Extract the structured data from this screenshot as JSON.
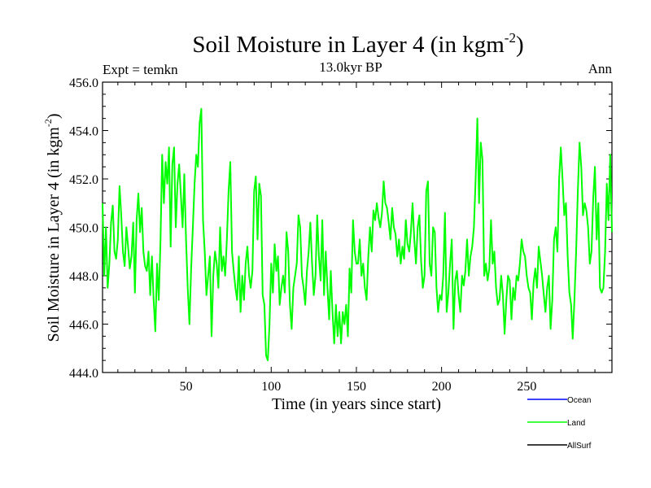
{
  "chart_data": {
    "type": "line",
    "title_main": "Soil Moisture in Layer 4 (in kgm",
    "title_sup": "-2",
    "title_close": ")",
    "subtitle": "13.0kyr BP",
    "left_label": "Expt = temkn",
    "right_label": "Ann",
    "xlabel": "Time (in years since start)",
    "ylabel_main": "Soil Moisture in Layer 4 (in kgm",
    "ylabel_sup": "-2",
    "ylabel_close": ")",
    "xlim": [
      1,
      300
    ],
    "ylim": [
      444.0,
      456.0
    ],
    "xticks": [
      50,
      100,
      150,
      200,
      250
    ],
    "yticks": [
      444.0,
      446.0,
      448.0,
      450.0,
      452.0,
      454.0,
      456.0
    ],
    "ytick_labels": [
      "444.0",
      "446.0",
      "448.0",
      "450.0",
      "452.0",
      "454.0",
      "456.0"
    ],
    "legend": [
      {
        "name": "Ocean",
        "color": "#0000ff"
      },
      {
        "name": "Land",
        "color": "#00ff00"
      },
      {
        "name": "AllSurf",
        "color": "#000000"
      }
    ],
    "series": [
      {
        "name": "Land",
        "color": "#00ff00",
        "points": [
          [
            1,
            451.0
          ],
          [
            2,
            448.0
          ],
          [
            3,
            450.0
          ],
          [
            4,
            447.5
          ],
          [
            5,
            448.5
          ],
          [
            6,
            450.2
          ],
          [
            7,
            450.9
          ],
          [
            8,
            449.0
          ],
          [
            9,
            448.7
          ],
          [
            10,
            449.5
          ],
          [
            11,
            451.7
          ],
          [
            12,
            450.5
          ],
          [
            13,
            449.0
          ],
          [
            14,
            448.4
          ],
          [
            15,
            450.0
          ],
          [
            16,
            449.2
          ],
          [
            17,
            448.3
          ],
          [
            18,
            448.8
          ],
          [
            19,
            450.2
          ],
          [
            20,
            447.3
          ],
          [
            21,
            450.3
          ],
          [
            22,
            451.4
          ],
          [
            23,
            449.8
          ],
          [
            24,
            450.8
          ],
          [
            25,
            449.0
          ],
          [
            26,
            448.4
          ],
          [
            27,
            448.2
          ],
          [
            28,
            449.0
          ],
          [
            29,
            447.2
          ],
          [
            30,
            448.8
          ],
          [
            31,
            447.0
          ],
          [
            32,
            445.7
          ],
          [
            33,
            448.5
          ],
          [
            34,
            447.0
          ],
          [
            35,
            449.4
          ],
          [
            36,
            453.0
          ],
          [
            37,
            451.0
          ],
          [
            38,
            452.7
          ],
          [
            39,
            451.8
          ],
          [
            40,
            453.3
          ],
          [
            41,
            449.2
          ],
          [
            42,
            452.6
          ],
          [
            43,
            453.3
          ],
          [
            44,
            450.0
          ],
          [
            45,
            451.8
          ],
          [
            46,
            452.6
          ],
          [
            47,
            451.3
          ],
          [
            48,
            450.0
          ],
          [
            49,
            452.2
          ],
          [
            50,
            449.5
          ],
          [
            51,
            447.5
          ],
          [
            52,
            446.0
          ],
          [
            53,
            448.3
          ],
          [
            54,
            450.0
          ],
          [
            55,
            451.8
          ],
          [
            56,
            453.0
          ],
          [
            57,
            452.5
          ],
          [
            58,
            454.3
          ],
          [
            59,
            454.9
          ],
          [
            60,
            450.3
          ],
          [
            61,
            449.0
          ],
          [
            62,
            447.2
          ],
          [
            63,
            448.0
          ],
          [
            64,
            448.8
          ],
          [
            65,
            445.5
          ],
          [
            66,
            448.0
          ],
          [
            67,
            449.0
          ],
          [
            68,
            448.5
          ],
          [
            69,
            447.5
          ],
          [
            70,
            450.0
          ],
          [
            71,
            448.2
          ],
          [
            72,
            448.8
          ],
          [
            73,
            448.0
          ],
          [
            74,
            449.5
          ],
          [
            75,
            451.5
          ],
          [
            76,
            452.7
          ],
          [
            77,
            449.0
          ],
          [
            78,
            448.2
          ],
          [
            79,
            447.5
          ],
          [
            80,
            447.0
          ],
          [
            81,
            448.8
          ],
          [
            82,
            446.5
          ],
          [
            83,
            448.0
          ],
          [
            84,
            447.0
          ],
          [
            85,
            448.5
          ],
          [
            86,
            449.2
          ],
          [
            87,
            448.0
          ],
          [
            88,
            447.5
          ],
          [
            89,
            448.2
          ],
          [
            90,
            451.5
          ],
          [
            91,
            452.1
          ],
          [
            92,
            449.5
          ],
          [
            93,
            451.8
          ],
          [
            94,
            451.3
          ],
          [
            95,
            447.2
          ],
          [
            96,
            446.8
          ],
          [
            97,
            444.7
          ],
          [
            98,
            444.5
          ],
          [
            99,
            446.0
          ],
          [
            100,
            448.5
          ],
          [
            101,
            447.3
          ],
          [
            102,
            449.3
          ],
          [
            103,
            448.2
          ],
          [
            104,
            448.8
          ],
          [
            105,
            446.8
          ],
          [
            106,
            447.5
          ],
          [
            107,
            448.0
          ],
          [
            108,
            447.3
          ],
          [
            109,
            449.8
          ],
          [
            110,
            449.0
          ],
          [
            111,
            446.8
          ],
          [
            112,
            445.8
          ],
          [
            113,
            447.5
          ],
          [
            114,
            448.0
          ],
          [
            115,
            448.5
          ],
          [
            116,
            450.5
          ],
          [
            117,
            450.0
          ],
          [
            118,
            448.0
          ],
          [
            119,
            447.5
          ],
          [
            120,
            446.8
          ],
          [
            121,
            448.2
          ],
          [
            122,
            449.0
          ],
          [
            123,
            450.2
          ],
          [
            124,
            448.5
          ],
          [
            125,
            447.2
          ],
          [
            126,
            448.0
          ],
          [
            127,
            450.5
          ],
          [
            128,
            448.8
          ],
          [
            129,
            447.8
          ],
          [
            130,
            450.3
          ],
          [
            131,
            447.2
          ],
          [
            132,
            449.0
          ],
          [
            133,
            447.5
          ],
          [
            134,
            446.2
          ],
          [
            135,
            448.2
          ],
          [
            136,
            446.5
          ],
          [
            137,
            445.2
          ],
          [
            138,
            446.8
          ],
          [
            139,
            445.5
          ],
          [
            140,
            446.5
          ],
          [
            141,
            445.2
          ],
          [
            142,
            446.5
          ],
          [
            143,
            446.0
          ],
          [
            144,
            446.8
          ],
          [
            145,
            445.5
          ],
          [
            146,
            448.3
          ],
          [
            147,
            447.3
          ],
          [
            148,
            450.3
          ],
          [
            149,
            449.0
          ],
          [
            150,
            448.5
          ],
          [
            151,
            448.5
          ],
          [
            152,
            449.5
          ],
          [
            153,
            448.0
          ],
          [
            154,
            448.5
          ],
          [
            155,
            447.5
          ],
          [
            156,
            447.0
          ],
          [
            157,
            448.8
          ],
          [
            158,
            450.0
          ],
          [
            159,
            449.0
          ],
          [
            160,
            450.7
          ],
          [
            161,
            450.3
          ],
          [
            162,
            451.0
          ],
          [
            163,
            450.4
          ],
          [
            164,
            450.0
          ],
          [
            165,
            450.6
          ],
          [
            166,
            451.9
          ],
          [
            167,
            451.0
          ],
          [
            168,
            450.8
          ],
          [
            169,
            450.2
          ],
          [
            170,
            449.5
          ],
          [
            171,
            450.8
          ],
          [
            172,
            450.0
          ],
          [
            173,
            449.7
          ],
          [
            174,
            448.8
          ],
          [
            175,
            449.5
          ],
          [
            176,
            448.5
          ],
          [
            177,
            449.2
          ],
          [
            178,
            448.7
          ],
          [
            179,
            450.3
          ],
          [
            180,
            449.3
          ],
          [
            181,
            449.0
          ],
          [
            182,
            449.8
          ],
          [
            183,
            451.0
          ],
          [
            184,
            449.5
          ],
          [
            185,
            448.5
          ],
          [
            186,
            450.0
          ],
          [
            187,
            450.5
          ],
          [
            188,
            448.6
          ],
          [
            189,
            447.5
          ],
          [
            190,
            448.0
          ],
          [
            191,
            451.5
          ],
          [
            192,
            451.9
          ],
          [
            193,
            448.5
          ],
          [
            194,
            448.0
          ],
          [
            195,
            450.0
          ],
          [
            196,
            449.8
          ],
          [
            197,
            447.5
          ],
          [
            198,
            446.5
          ],
          [
            199,
            447.2
          ],
          [
            200,
            447.0
          ],
          [
            201,
            448.0
          ],
          [
            202,
            450.6
          ],
          [
            203,
            446.5
          ],
          [
            204,
            447.3
          ],
          [
            205,
            448.5
          ],
          [
            206,
            449.5
          ],
          [
            207,
            445.8
          ],
          [
            208,
            447.8
          ],
          [
            209,
            448.2
          ],
          [
            210,
            447.2
          ],
          [
            211,
            446.5
          ],
          [
            212,
            448.0
          ],
          [
            213,
            447.6
          ],
          [
            214,
            448.2
          ],
          [
            215,
            449.5
          ],
          [
            216,
            448.0
          ],
          [
            217,
            448.8
          ],
          [
            218,
            449.2
          ],
          [
            219,
            450.0
          ],
          [
            220,
            452.0
          ],
          [
            221,
            454.5
          ],
          [
            222,
            451.0
          ],
          [
            223,
            453.5
          ],
          [
            224,
            452.8
          ],
          [
            225,
            448.0
          ],
          [
            226,
            448.5
          ],
          [
            227,
            447.8
          ],
          [
            228,
            448.3
          ],
          [
            229,
            450.3
          ],
          [
            230,
            448.5
          ],
          [
            231,
            449.0
          ],
          [
            232,
            447.5
          ],
          [
            233,
            446.8
          ],
          [
            234,
            447.0
          ],
          [
            235,
            448.0
          ],
          [
            236,
            447.2
          ],
          [
            237,
            445.6
          ],
          [
            238,
            447.0
          ],
          [
            239,
            448.0
          ],
          [
            240,
            447.8
          ],
          [
            241,
            446.2
          ],
          [
            242,
            447.5
          ],
          [
            243,
            447.0
          ],
          [
            244,
            448.0
          ],
          [
            245,
            447.8
          ],
          [
            246,
            448.5
          ],
          [
            247,
            449.5
          ],
          [
            248,
            449.0
          ],
          [
            249,
            448.8
          ],
          [
            250,
            448.0
          ],
          [
            251,
            447.5
          ],
          [
            252,
            447.3
          ],
          [
            253,
            446.2
          ],
          [
            254,
            447.7
          ],
          [
            255,
            448.3
          ],
          [
            256,
            447.5
          ],
          [
            257,
            449.2
          ],
          [
            258,
            448.6
          ],
          [
            259,
            448.0
          ],
          [
            260,
            447.2
          ],
          [
            261,
            446.5
          ],
          [
            262,
            447.5
          ],
          [
            263,
            448.0
          ],
          [
            264,
            445.8
          ],
          [
            265,
            447.0
          ],
          [
            266,
            449.5
          ],
          [
            267,
            450.0
          ],
          [
            268,
            449.0
          ],
          [
            269,
            452.0
          ],
          [
            270,
            453.3
          ],
          [
            271,
            452.0
          ],
          [
            272,
            450.5
          ],
          [
            273,
            451.0
          ],
          [
            274,
            448.8
          ],
          [
            275,
            447.3
          ],
          [
            276,
            446.8
          ],
          [
            277,
            445.4
          ],
          [
            278,
            447.0
          ],
          [
            279,
            449.0
          ],
          [
            280,
            451.5
          ],
          [
            281,
            453.5
          ],
          [
            282,
            452.5
          ],
          [
            283,
            450.5
          ],
          [
            284,
            451.0
          ],
          [
            285,
            450.7
          ],
          [
            286,
            450.0
          ],
          [
            287,
            448.5
          ],
          [
            288,
            449.0
          ],
          [
            289,
            451.2
          ],
          [
            290,
            452.5
          ],
          [
            291,
            449.5
          ],
          [
            292,
            451.0
          ],
          [
            293,
            447.5
          ],
          [
            294,
            447.3
          ],
          [
            295,
            447.5
          ],
          [
            296,
            449.0
          ],
          [
            297,
            451.8
          ],
          [
            298,
            450.3
          ],
          [
            299,
            453.0
          ],
          [
            300,
            449.8
          ]
        ]
      }
    ]
  }
}
